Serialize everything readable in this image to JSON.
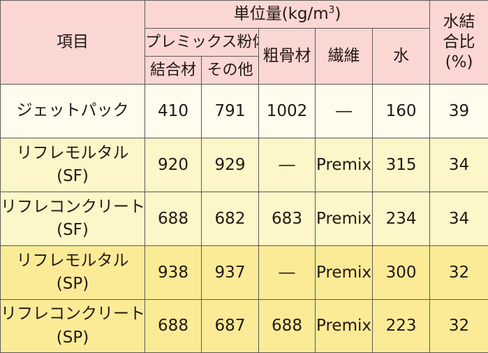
{
  "header": {
    "item_label": "項目",
    "unit_label": "単位量(kg/m",
    "unit_sup": "3",
    "unit_close": ")",
    "ratio_line1": "水結",
    "ratio_line2": "合比",
    "ratio_line3": "(%)",
    "premix_label": "プレミックス粉体",
    "coarse_label": "粗骨材",
    "fiber_label": "繊維",
    "water_label": "水",
    "binder_label": "結合材",
    "other_label": "その他"
  },
  "rows": [
    {
      "name_line1": "ジェットパック",
      "name_line2": "",
      "binder": "410",
      "other": "791",
      "coarse": "1002",
      "fiber": "―",
      "water": "160",
      "ratio": "39"
    },
    {
      "name_line1": "リフレモルタル",
      "name_line2": "(SF)",
      "binder": "920",
      "other": "929",
      "coarse": "―",
      "fiber": "Premix",
      "water": "315",
      "ratio": "34"
    },
    {
      "name_line1": "リフレコンクリート",
      "name_line2": "(SF)",
      "binder": "688",
      "other": "682",
      "coarse": "683",
      "fiber": "Premix",
      "water": "234",
      "ratio": "34"
    },
    {
      "name_line1": "リフレモルタル",
      "name_line2": "(SP)",
      "binder": "938",
      "other": "937",
      "coarse": "―",
      "fiber": "Premix",
      "water": "300",
      "ratio": "32"
    },
    {
      "name_line1": "リフレコンクリート",
      "name_line2": "(SP)",
      "binder": "688",
      "other": "687",
      "coarse": "688",
      "fiber": "Premix",
      "water": "223",
      "ratio": "32"
    }
  ],
  "colors": {
    "header_bg": "#fbd7d3",
    "row1_bg": "#fffbed",
    "row2_bg": "#fdf6c8",
    "row4_bg": "#fbeb97",
    "border": "#5a5a5a"
  }
}
